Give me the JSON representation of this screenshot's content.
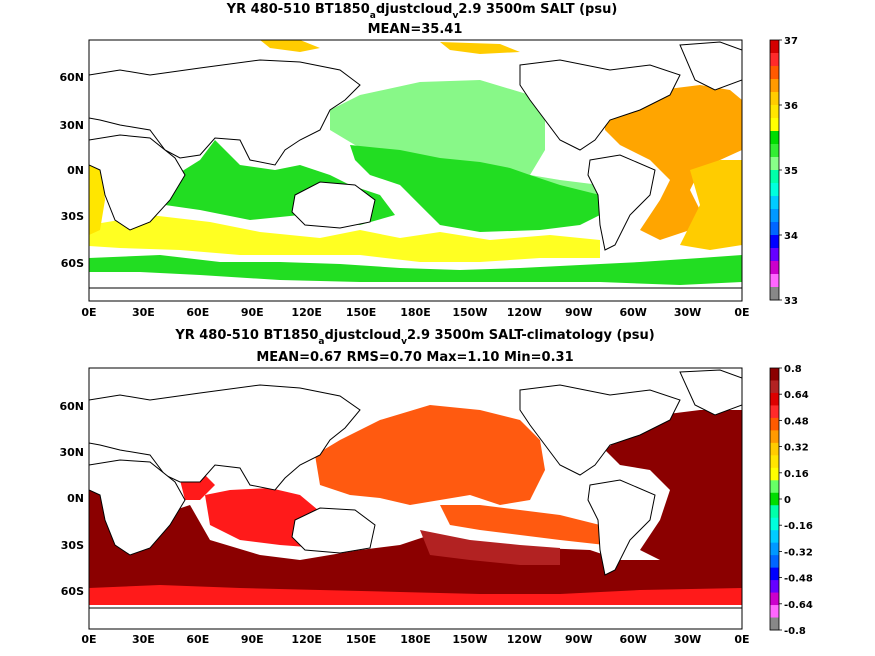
{
  "panels": [
    {
      "title_main": "YR 480-510 BT1850",
      "title_sub1": "a",
      "title_mid": "djustcloud",
      "title_sub2": "v",
      "title_end": "2.9 3500m SALT (psu)",
      "stats": "MEAN=35.41",
      "colorbar": {
        "ticks": [
          "37",
          "36",
          "35",
          "34",
          "33"
        ],
        "colors": [
          "#d40000",
          "#ff2a2a",
          "#ff5a00",
          "#ff9a00",
          "#ffcc00",
          "#ffe600",
          "#ffff00",
          "#00dd00",
          "#33ee33",
          "#88ff88",
          "#00ffaa",
          "#00ffdd",
          "#00ccff",
          "#0099ff",
          "#0066ff",
          "#0000ff",
          "#6600ff",
          "#cc00cc",
          "#ff66ff",
          "#888888"
        ]
      }
    },
    {
      "title_main": "YR 480-510 BT1850",
      "title_sub1": "a",
      "title_mid": "djustcloud",
      "title_sub2": "v",
      "title_end": "2.9 3500m SALT-climatology (psu)",
      "stats": "MEAN=0.67   RMS=0.70   Max=1.10   Min=0.31",
      "colorbar": {
        "ticks": [
          "0.8",
          "0.64",
          "0.48",
          "0.32",
          "0.16",
          "0",
          "-0.16",
          "-0.32",
          "-0.48",
          "-0.64",
          "-0.8"
        ],
        "colors": [
          "#8b0000",
          "#b22222",
          "#dd0000",
          "#ff2a2a",
          "#ff5a00",
          "#ff9a00",
          "#ffcc00",
          "#ffe600",
          "#ffff00",
          "#66ff66",
          "#00dd00",
          "#00ffaa",
          "#00ffdd",
          "#00ccff",
          "#0099ff",
          "#0066ff",
          "#0000ff",
          "#6600ff",
          "#cc00cc",
          "#ff66ff",
          "#888888"
        ]
      }
    }
  ],
  "axes": {
    "lon_labels": [
      "0E",
      "30E",
      "60E",
      "90E",
      "120E",
      "150E",
      "180E",
      "150W",
      "120W",
      "90W",
      "60W",
      "30W",
      "0E"
    ],
    "lat_labels": [
      "60N",
      "30N",
      "0N",
      "30S",
      "60S"
    ]
  },
  "colors": {
    "top_pacific": "#88f888",
    "top_indian": "#22dd22",
    "top_south": "#ffff22",
    "top_atlantic": "#ffa500",
    "top_atlantic_south": "#ffcc00",
    "bot_pacific": "#ff5a10",
    "bot_indian": "#ff1a1a",
    "bot_atlantic": "#8b0000",
    "bot_southern": "#b22222"
  }
}
